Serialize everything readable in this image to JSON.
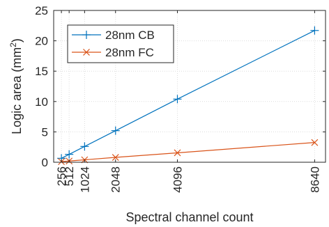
{
  "chart_data": {
    "type": "line",
    "xlabel": "Spectral channel count",
    "ylabel": "Logic area (mm",
    "ylabel_sup": "2",
    "ylabel_close": ")",
    "xlim": [
      0,
      9000
    ],
    "ylim": [
      0,
      25
    ],
    "xticks": [
      256,
      512,
      1024,
      2048,
      4096,
      8640
    ],
    "yticks": [
      0,
      5,
      10,
      15,
      20,
      25
    ],
    "grid": true,
    "legend_position": "top-left",
    "series": [
      {
        "name": "28nm CB",
        "color": "#0072BD",
        "marker": "plus",
        "x": [
          256,
          512,
          1024,
          2048,
          4096,
          8640
        ],
        "y": [
          0.65,
          1.3,
          2.6,
          5.2,
          10.4,
          21.7
        ]
      },
      {
        "name": "28nm FC",
        "color": "#D95319",
        "marker": "x",
        "x": [
          256,
          512,
          1024,
          2048,
          4096,
          8640
        ],
        "y": [
          0.1,
          0.2,
          0.4,
          0.8,
          1.55,
          3.25
        ]
      }
    ]
  }
}
